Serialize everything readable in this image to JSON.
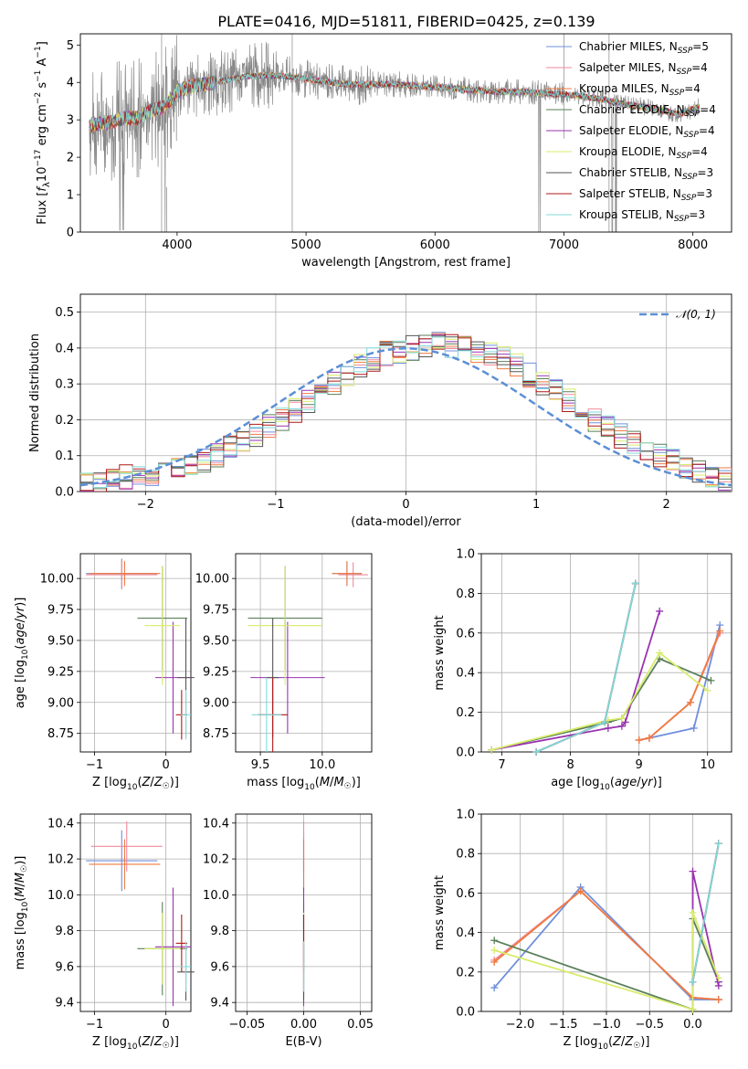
{
  "figure_title": "PLATE=0416, MJD=51811, FIBERID=0425, z=0.139",
  "colors": {
    "Chabrier MILES": "#6f8fdc",
    "Salpeter MILES": "#f08a9a",
    "Kroupa MILES": "#f07a40",
    "Chabrier ELODIE": "#5a7f5a",
    "Salpeter ELODIE": "#9933b0",
    "Kroupa ELODIE": "#d8ec6a",
    "Chabrier STELIB": "#555555",
    "Salpeter STELIB": "#b01818",
    "Kroupa STELIB": "#80dada",
    "gauss": "#5b8fd6"
  },
  "chart_data": [
    {
      "id": "spectrum",
      "type": "line",
      "xlabel": "wavelength [Angstrom, rest frame]",
      "ylabel": "Flux [f_λ 10^-17 erg cm^-2 s^-1 A^-1]",
      "xlim": [
        3250,
        8300
      ],
      "ylim": [
        0,
        5.3
      ],
      "xticks": [
        4000,
        5000,
        6000,
        7000,
        8000
      ],
      "yticks": [
        0,
        1,
        2,
        3,
        4,
        5
      ],
      "grid": false,
      "legend_position": "top-right",
      "legend": [
        {
          "name": "Chabrier MILES",
          "nssp": "=5",
          "color": "#6f8fdc"
        },
        {
          "name": "Salpeter MILES",
          "nssp": "=4",
          "color": "#f08a9a"
        },
        {
          "name": "Kroupa MILES",
          "nssp": "=4",
          "color": "#f07a40"
        },
        {
          "name": "Chabrier ELODIE",
          "nssp": "=4",
          "color": "#5a7f5a"
        },
        {
          "name": "Salpeter ELODIE",
          "nssp": "=4",
          "color": "#9933b0"
        },
        {
          "name": "Kroupa ELODIE",
          "nssp": "=4",
          "color": "#d8ec6a"
        },
        {
          "name": "Chabrier STELIB",
          "nssp": "=3",
          "color": "#555555"
        },
        {
          "name": "Salpeter STELIB",
          "nssp": "=3",
          "color": "#b01818"
        },
        {
          "name": "Kroupa STELIB",
          "nssp": "=3",
          "color": "#80dada"
        }
      ],
      "continuum": {
        "x": [
          3320,
          3400,
          3500,
          3600,
          3700,
          3800,
          3900,
          4000,
          4100,
          4200,
          4300,
          4500,
          4700,
          4900,
          5100,
          5300,
          5500,
          5700,
          5900,
          6100,
          6300,
          6500,
          6700,
          6900,
          7100,
          7300,
          7500,
          7700,
          7900,
          8050
        ],
        "y": [
          2.85,
          2.9,
          2.95,
          3.05,
          3.05,
          3.25,
          3.35,
          3.75,
          3.9,
          3.95,
          4.0,
          4.15,
          4.2,
          4.15,
          4.05,
          3.95,
          3.95,
          3.95,
          3.9,
          3.85,
          3.8,
          3.75,
          3.75,
          3.7,
          3.65,
          3.55,
          3.4,
          3.3,
          3.15,
          3.35
        ]
      }
    },
    {
      "id": "residuals",
      "type": "line",
      "xlabel": "(data-model)/error",
      "ylabel": "Normed distribution",
      "xlim": [
        -2.5,
        2.5
      ],
      "ylim": [
        0,
        0.55
      ],
      "xticks": [
        -2,
        -1,
        0,
        1,
        2
      ],
      "yticks": [
        0.0,
        0.1,
        0.2,
        0.3,
        0.4,
        0.5
      ],
      "grid": true,
      "legend_position": "top-right",
      "legend": [
        {
          "name": "𝒩(0, 1)",
          "style": "dashed"
        }
      ],
      "bin_width": 0.1,
      "bin_start": -2.5,
      "hist_base": [
        0.025,
        0.025,
        0.035,
        0.04,
        0.045,
        0.05,
        0.06,
        0.065,
        0.075,
        0.085,
        0.1,
        0.12,
        0.135,
        0.16,
        0.18,
        0.2,
        0.225,
        0.25,
        0.28,
        0.3,
        0.325,
        0.35,
        0.37,
        0.385,
        0.39,
        0.4,
        0.405,
        0.41,
        0.405,
        0.4,
        0.39,
        0.385,
        0.37,
        0.35,
        0.325,
        0.3,
        0.28,
        0.255,
        0.23,
        0.2,
        0.18,
        0.155,
        0.14,
        0.12,
        0.1,
        0.085,
        0.07,
        0.06,
        0.045,
        0.035,
        0.03
      ]
    },
    {
      "id": "age-vs-Z",
      "type": "scatter",
      "xlabel": "Z [log10(Z/Z☉)]",
      "ylabel": "age  [log10(age/yr)]",
      "xlim": [
        -1.2,
        0.35
      ],
      "ylim": [
        8.6,
        10.2
      ],
      "xticks": [
        -1,
        0
      ],
      "xticklabels": [
        "−1",
        "0"
      ],
      "yticks": [
        8.75,
        9.0,
        9.25,
        9.5,
        9.75,
        10.0
      ],
      "grid": true,
      "points": [
        {
          "s": "Chabrier MILES",
          "x": -0.62,
          "y": 10.04,
          "xe": 0.5,
          "ye": 0.12
        },
        {
          "s": "Salpeter MILES",
          "x": -0.62,
          "y": 10.03,
          "xe": 0.5,
          "ye": 0.12
        },
        {
          "s": "Kroupa MILES",
          "x": -0.58,
          "y": 10.04,
          "xe": 0.5,
          "ye": 0.1
        },
        {
          "s": "Chabrier ELODIE",
          "x": -0.05,
          "y": 9.68,
          "xe": 0.35,
          "ye": 0.42
        },
        {
          "s": "Salpeter ELODIE",
          "x": 0.1,
          "y": 9.2,
          "xe": 0.25,
          "ye": 0.45
        },
        {
          "s": "Kroupa ELODIE",
          "x": -0.05,
          "y": 9.62,
          "xe": 0.25,
          "ye": 0.48
        },
        {
          "s": "Chabrier STELIB",
          "x": 0.28,
          "y": 9.2,
          "xe": 0.12,
          "ye": 0.48
        },
        {
          "s": "Salpeter STELIB",
          "x": 0.22,
          "y": 8.9,
          "xe": 0.08,
          "ye": 0.2
        },
        {
          "s": "Kroupa STELIB",
          "x": 0.28,
          "y": 8.9,
          "xe": 0.07,
          "ye": 0.2
        }
      ]
    },
    {
      "id": "age-vs-mass",
      "type": "scatter",
      "xlabel": "mass [log10(M/M☉)]",
      "ylabel": "",
      "xlim": [
        9.3,
        10.4
      ],
      "ylim": [
        8.6,
        10.2
      ],
      "xticks": [
        9.5,
        10.0
      ],
      "xticklabels": [
        "9.5",
        "10.0"
      ],
      "yticks": [
        8.75,
        9.0,
        9.25,
        9.5,
        9.75,
        10.0
      ],
      "grid": true,
      "points": [
        {
          "s": "Chabrier MILES",
          "x": 10.2,
          "y": 10.04,
          "xe": 0.12,
          "ye": 0.1
        },
        {
          "s": "Salpeter MILES",
          "x": 10.25,
          "y": 10.03,
          "xe": 0.12,
          "ye": 0.1
        },
        {
          "s": "Kroupa MILES",
          "x": 10.2,
          "y": 10.04,
          "xe": 0.12,
          "ye": 0.1
        },
        {
          "s": "Chabrier ELODIE",
          "x": 9.7,
          "y": 9.68,
          "xe": 0.3,
          "ye": 0.42
        },
        {
          "s": "Salpeter ELODIE",
          "x": 9.72,
          "y": 9.2,
          "xe": 0.3,
          "ye": 0.45
        },
        {
          "s": "Kroupa ELODIE",
          "x": 9.7,
          "y": 9.62,
          "xe": 0.3,
          "ye": 0.48
        },
        {
          "s": "Chabrier STELIB",
          "x": 9.6,
          "y": 9.2,
          "xe": 0.05,
          "ye": 0.48
        },
        {
          "s": "Salpeter STELIB",
          "x": 9.6,
          "y": 8.9,
          "xe": 0.12,
          "ye": 0.3
        },
        {
          "s": "Kroupa STELIB",
          "x": 9.55,
          "y": 8.9,
          "xe": 0.12,
          "ye": 0.3
        }
      ]
    },
    {
      "id": "massweight-vs-age",
      "type": "line",
      "xlabel": "age  [log10(age/yr)]",
      "ylabel": "mass weight",
      "xlim": [
        6.7,
        10.35
      ],
      "ylim": [
        0,
        1.0
      ],
      "xticks": [
        7,
        8,
        9,
        10
      ],
      "yticks": [
        0.0,
        0.2,
        0.4,
        0.6,
        0.8,
        1.0
      ],
      "grid": true,
      "series": [
        {
          "s": "Chabrier MILES",
          "x": [
            9.0,
            9.15,
            9.8,
            10.18
          ],
          "y": [
            0.06,
            0.07,
            0.12,
            0.64
          ]
        },
        {
          "s": "Salpeter MILES",
          "x": [
            9.0,
            9.15,
            9.75,
            10.18
          ],
          "y": [
            0.06,
            0.07,
            0.25,
            0.6
          ]
        },
        {
          "s": "Kroupa MILES",
          "x": [
            9.0,
            9.15,
            9.75,
            10.18
          ],
          "y": [
            0.06,
            0.07,
            0.25,
            0.61
          ]
        },
        {
          "s": "Chabrier ELODIE",
          "x": [
            6.85,
            8.55,
            8.75,
            9.3,
            10.05
          ],
          "y": [
            0.01,
            0.15,
            0.17,
            0.47,
            0.36
          ]
        },
        {
          "s": "Salpeter ELODIE",
          "x": [
            6.85,
            8.55,
            8.75,
            8.8,
            9.3
          ],
          "y": [
            0.01,
            0.12,
            0.13,
            0.15,
            0.71
          ]
        },
        {
          "s": "Kroupa ELODIE",
          "x": [
            6.85,
            8.55,
            8.75,
            9.3,
            10.0
          ],
          "y": [
            0.01,
            0.16,
            0.17,
            0.5,
            0.31
          ]
        },
        {
          "s": "Chabrier STELIB",
          "x": [
            7.5,
            8.5,
            8.95
          ],
          "y": [
            0.0,
            0.15,
            0.85
          ]
        },
        {
          "s": "Salpeter STELIB",
          "x": [
            7.5,
            8.5,
            8.95
          ],
          "y": [
            0.0,
            0.15,
            0.85
          ]
        },
        {
          "s": "Kroupa STELIB",
          "x": [
            7.5,
            8.5,
            8.95
          ],
          "y": [
            0.0,
            0.15,
            0.85
          ]
        }
      ]
    },
    {
      "id": "mass-vs-Z",
      "type": "scatter",
      "xlabel": "Z [log10(Z/Z☉)]",
      "ylabel": "mass [log10(M/M☉)]",
      "xlim": [
        -1.2,
        0.35
      ],
      "ylim": [
        9.35,
        10.45
      ],
      "xticks": [
        -1,
        0
      ],
      "xticklabels": [
        "−1",
        "0"
      ],
      "yticks": [
        9.4,
        9.6,
        9.8,
        10.0,
        10.2,
        10.4
      ],
      "grid": true,
      "points": [
        {
          "s": "Chabrier MILES",
          "x": -0.62,
          "y": 10.19,
          "xe": 0.5,
          "ye": 0.17
        },
        {
          "s": "Salpeter MILES",
          "x": -0.55,
          "y": 10.27,
          "xe": 0.5,
          "ye": 0.14
        },
        {
          "s": "Kroupa MILES",
          "x": -0.58,
          "y": 10.17,
          "xe": 0.5,
          "ye": 0.14
        },
        {
          "s": "Chabrier ELODIE",
          "x": -0.05,
          "y": 9.7,
          "xe": 0.35,
          "ye": 0.26
        },
        {
          "s": "Salpeter ELODIE",
          "x": 0.1,
          "y": 9.71,
          "xe": 0.25,
          "ye": 0.33
        },
        {
          "s": "Kroupa ELODIE",
          "x": -0.05,
          "y": 9.7,
          "xe": 0.25,
          "ye": 0.2
        },
        {
          "s": "Chabrier STELIB",
          "x": 0.28,
          "y": 9.57,
          "xe": 0.12,
          "ye": 0.16
        },
        {
          "s": "Salpeter STELIB",
          "x": 0.22,
          "y": 9.73,
          "xe": 0.08,
          "ye": 0.16
        },
        {
          "s": "Kroupa STELIB",
          "x": 0.28,
          "y": 9.6,
          "xe": 0.07,
          "ye": 0.14
        }
      ]
    },
    {
      "id": "mass-vs-ebv",
      "type": "scatter",
      "xlabel": "E(B-V)",
      "ylabel": "",
      "xlim": [
        -0.06,
        0.06
      ],
      "ylim": [
        9.35,
        10.45
      ],
      "xticks": [
        -0.05,
        0.0,
        0.05
      ],
      "xticklabels": [
        "−0.05",
        "0.00",
        "0.05"
      ],
      "yticks": [
        9.4,
        9.6,
        9.8,
        10.0,
        10.2,
        10.4
      ],
      "grid": true,
      "points": [
        {
          "s": "Chabrier MILES",
          "x": 0,
          "y": 10.19,
          "xe": 0,
          "ye": 0.17
        },
        {
          "s": "Salpeter MILES",
          "x": 0,
          "y": 10.27,
          "xe": 0,
          "ye": 0.14
        },
        {
          "s": "Kroupa MILES",
          "x": 0,
          "y": 10.17,
          "xe": 0,
          "ye": 0.14
        },
        {
          "s": "Chabrier ELODIE",
          "x": 0,
          "y": 9.7,
          "xe": 0,
          "ye": 0.26
        },
        {
          "s": "Salpeter ELODIE",
          "x": 0,
          "y": 9.71,
          "xe": 0,
          "ye": 0.33
        },
        {
          "s": "Kroupa ELODIE",
          "x": 0,
          "y": 9.7,
          "xe": 0,
          "ye": 0.2
        },
        {
          "s": "Chabrier STELIB",
          "x": 0,
          "y": 9.57,
          "xe": 0,
          "ye": 0.16
        },
        {
          "s": "Salpeter STELIB",
          "x": 0,
          "y": 9.73,
          "xe": 0,
          "ye": 0.16
        },
        {
          "s": "Kroupa STELIB",
          "x": 0,
          "y": 9.6,
          "xe": 0,
          "ye": 0.14
        }
      ]
    },
    {
      "id": "massweight-vs-Z",
      "type": "line",
      "xlabel": "Z [log10(Z/Z☉)]",
      "ylabel": "mass weight",
      "xlim": [
        -2.45,
        0.45
      ],
      "ylim": [
        0,
        1.0
      ],
      "xticks": [
        -2.0,
        -1.5,
        -1.0,
        -0.5,
        0.0
      ],
      "xticklabels": [
        "−2.0",
        "−1.5",
        "−1.0",
        "−0.5",
        "0.0"
      ],
      "yticks": [
        0.0,
        0.2,
        0.4,
        0.6,
        0.8,
        1.0
      ],
      "grid": true,
      "series": [
        {
          "s": "Chabrier MILES",
          "x": [
            -2.3,
            -1.3,
            0.0,
            0.3
          ],
          "y": [
            0.12,
            0.63,
            0.06,
            0.06
          ]
        },
        {
          "s": "Salpeter MILES",
          "x": [
            -2.3,
            -1.3,
            0.0,
            0.3
          ],
          "y": [
            0.26,
            0.61,
            0.07,
            0.06
          ]
        },
        {
          "s": "Kroupa MILES",
          "x": [
            -2.3,
            -1.3,
            0.0,
            0.3
          ],
          "y": [
            0.25,
            0.61,
            0.07,
            0.06
          ]
        },
        {
          "s": "Chabrier ELODIE",
          "x": [
            -2.3,
            0.0,
            0.0,
            0.3
          ],
          "y": [
            0.36,
            0.01,
            0.47,
            0.15
          ]
        },
        {
          "s": "Salpeter ELODIE",
          "x": [
            0.0,
            0.0,
            0.3,
            0.3
          ],
          "y": [
            0.01,
            0.71,
            0.13,
            0.15
          ]
        },
        {
          "s": "Kroupa ELODIE",
          "x": [
            -2.3,
            0.0,
            0.0,
            0.3
          ],
          "y": [
            0.31,
            0.01,
            0.5,
            0.17
          ]
        },
        {
          "s": "Chabrier STELIB",
          "x": [
            0.0,
            0.3
          ],
          "y": [
            0.15,
            0.85
          ]
        },
        {
          "s": "Salpeter STELIB",
          "x": [
            0.0,
            0.3
          ],
          "y": [
            0.15,
            0.85
          ]
        },
        {
          "s": "Kroupa STELIB",
          "x": [
            0.0,
            0.3
          ],
          "y": [
            0.15,
            0.85
          ]
        }
      ]
    }
  ]
}
